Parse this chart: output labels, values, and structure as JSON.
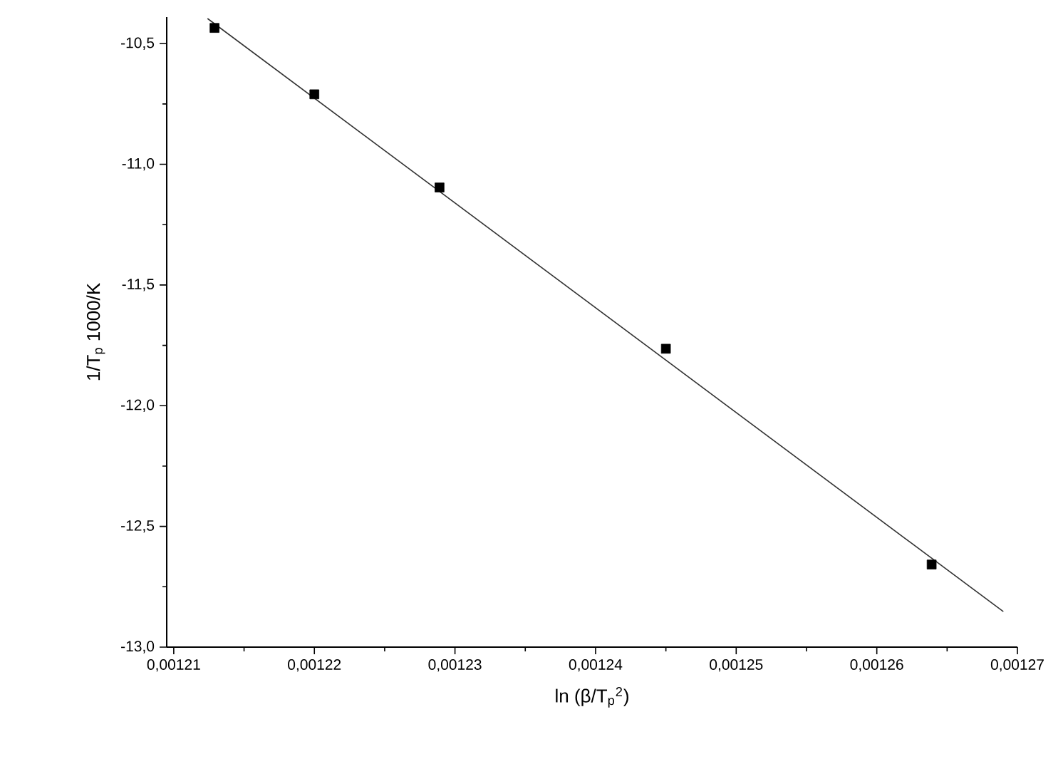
{
  "chart_data": {
    "type": "scatter",
    "xlabel": "ln (β/T$_{p}$$^{2}$)",
    "ylabel": "1/T$_{p}$  1000/K",
    "xlim": [
      0.0012095,
      0.00127
    ],
    "ylim": [
      -13.0,
      -10.39
    ],
    "xticks": [
      {
        "value": 0.00121,
        "label": "0,00121"
      },
      {
        "value": 0.00122,
        "label": "0,00122"
      },
      {
        "value": 0.00123,
        "label": "0,00123"
      },
      {
        "value": 0.00124,
        "label": "0,00124"
      },
      {
        "value": 0.00125,
        "label": "0,00125"
      },
      {
        "value": 0.00126,
        "label": "0,00126"
      },
      {
        "value": 0.00127,
        "label": "0,00127"
      }
    ],
    "yticks": [
      {
        "value": -13.0,
        "label": "-13,0"
      },
      {
        "value": -12.5,
        "label": "-12,5"
      },
      {
        "value": -12.0,
        "label": "-12,0"
      },
      {
        "value": -11.5,
        "label": "-11,5"
      },
      {
        "value": -11.0,
        "label": "-11,0"
      },
      {
        "value": -10.5,
        "label": "-10,5"
      }
    ],
    "grid": false,
    "series": [
      {
        "marker": "square",
        "color": "#000000",
        "x": [
          0.0012129,
          0.00122,
          0.0012289,
          0.001245,
          0.0012639
        ],
        "values": [
          -10.435,
          -10.71,
          -11.096,
          -11.764,
          -12.658
        ]
      },
      {
        "type": "line",
        "color": "#333333",
        "line_style": "solid",
        "x": [
          0.0012124,
          0.001269
        ],
        "values": [
          -10.396,
          -12.853
        ]
      }
    ]
  }
}
